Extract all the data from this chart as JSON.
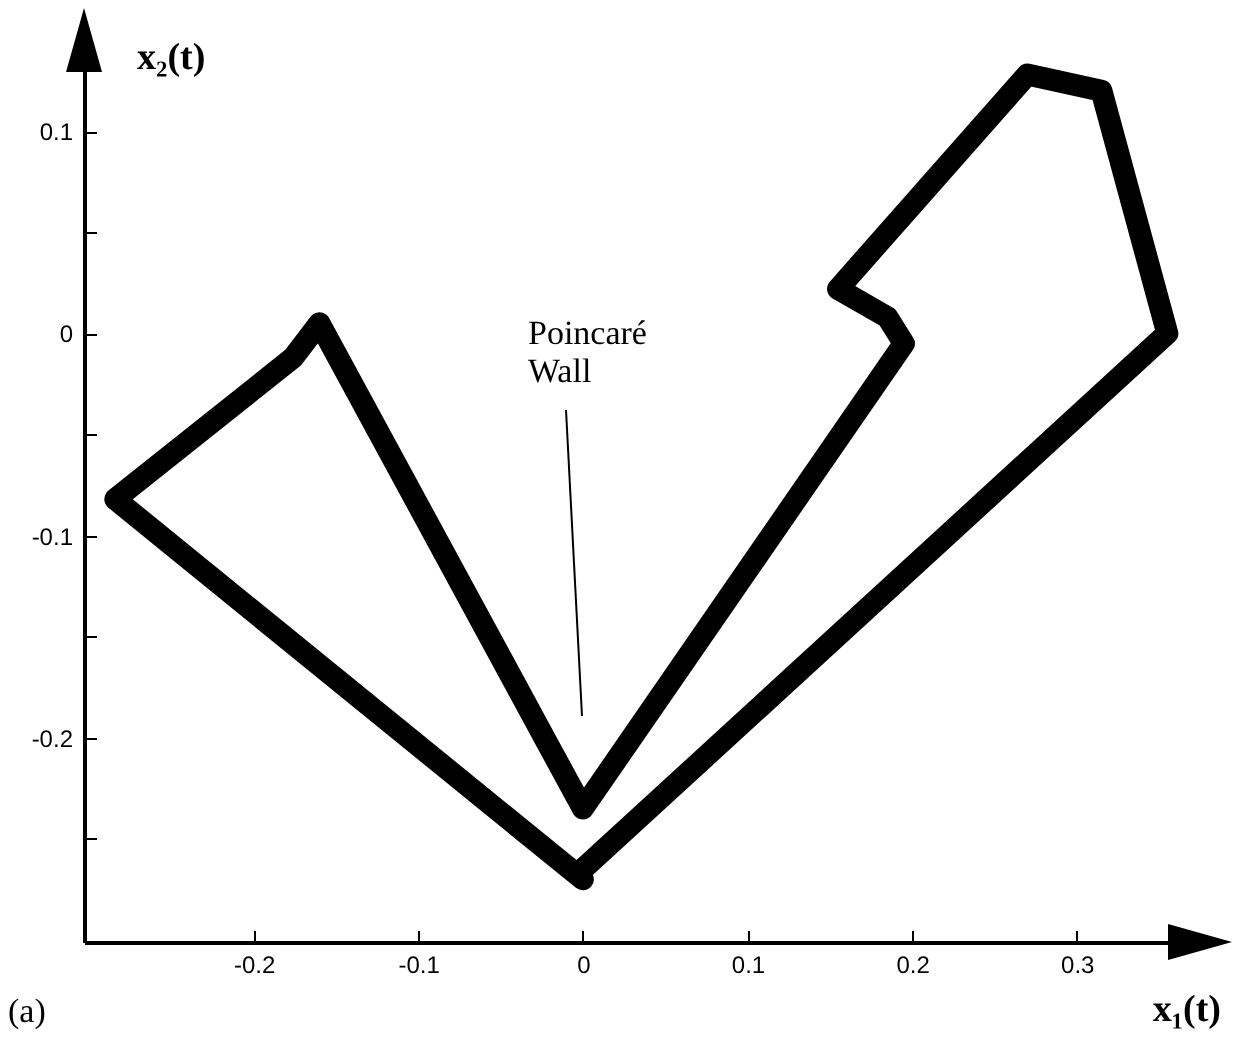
{
  "chart_data": {
    "type": "line",
    "xlabel": "x₁(t)",
    "ylabel": "x₂(t)",
    "x": [
      0,
      -0.284,
      -0.176,
      -0.16,
      -0.02,
      0,
      0.195,
      0.185,
      0.155,
      0.27,
      0.315,
      0.355,
      0
    ],
    "series": [
      {
        "color": "#000000",
        "values": [
          -0.27,
          -0.082,
          -0.012,
          0.005,
          -0.205,
          -0.235,
          -0.005,
          0.008,
          0.022,
          0.128,
          0.12,
          0.0,
          -0.265
        ]
      }
    ],
    "xlim": [
      -0.303,
      0.387
    ],
    "ylim": [
      -0.301,
      0.155
    ],
    "xticks": [
      -0.2,
      -0.1,
      0,
      0.1,
      0.2,
      0.3
    ],
    "yticks": [
      0.1,
      {
        "value": 0.05,
        "label": null
      },
      0,
      {
        "value": -0.05,
        "label": null
      },
      -0.1,
      {
        "value": -0.15,
        "label": null
      },
      -0.2,
      {
        "value": -0.25,
        "label": null
      }
    ],
    "grid": false,
    "line_style": "solid",
    "annotations": [
      "Poincaré Wall",
      "(a)"
    ]
  }
}
